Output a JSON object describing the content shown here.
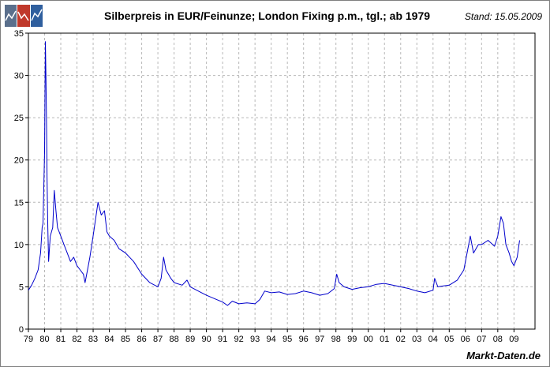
{
  "header": {
    "logo_name": "markt-daten-logo-icon",
    "logo_colors": [
      "#5a6f8c",
      "#c0392b",
      "#2f5f9e"
    ]
  },
  "chart_data": {
    "type": "line",
    "title": "Silberpreis in EUR/Feinunze; London Fixing p.m., tgl.; ab 1979",
    "stand": "Stand: 15.05.2009",
    "source": "Markt-Daten.de",
    "xlabel": "",
    "ylabel": "",
    "xlim": [
      1979.0,
      2010.3
    ],
    "ylim": [
      0,
      35
    ],
    "y_ticks": [
      0,
      5,
      10,
      15,
      20,
      25,
      30,
      35
    ],
    "x_ticks": [
      {
        "year": 1979,
        "label": "79"
      },
      {
        "year": 1980,
        "label": "80"
      },
      {
        "year": 1981,
        "label": "81"
      },
      {
        "year": 1982,
        "label": "82"
      },
      {
        "year": 1983,
        "label": "83"
      },
      {
        "year": 1984,
        "label": "84"
      },
      {
        "year": 1985,
        "label": "85"
      },
      {
        "year": 1986,
        "label": "86"
      },
      {
        "year": 1987,
        "label": "87"
      },
      {
        "year": 1988,
        "label": "88"
      },
      {
        "year": 1989,
        "label": "89"
      },
      {
        "year": 1990,
        "label": "90"
      },
      {
        "year": 1991,
        "label": "91"
      },
      {
        "year": 1992,
        "label": "92"
      },
      {
        "year": 1993,
        "label": "93"
      },
      {
        "year": 1994,
        "label": "94"
      },
      {
        "year": 1995,
        "label": "95"
      },
      {
        "year": 1996,
        "label": "96"
      },
      {
        "year": 1997,
        "label": "97"
      },
      {
        "year": 1998,
        "label": "98"
      },
      {
        "year": 1999,
        "label": "99"
      },
      {
        "year": 2000,
        "label": "00"
      },
      {
        "year": 2001,
        "label": "01"
      },
      {
        "year": 2002,
        "label": "02"
      },
      {
        "year": 2003,
        "label": "03"
      },
      {
        "year": 2004,
        "label": "04"
      },
      {
        "year": 2005,
        "label": "05"
      },
      {
        "year": 2006,
        "label": "06"
      },
      {
        "year": 2007,
        "label": "07"
      },
      {
        "year": 2008,
        "label": "08"
      },
      {
        "year": 2009,
        "label": "09"
      }
    ],
    "grid": true,
    "series": [
      {
        "name": "Silberpreis EUR/Feinunze",
        "color": "#0000cc",
        "x": [
          1979.0,
          1979.2,
          1979.4,
          1979.6,
          1979.75,
          1979.85,
          1979.9,
          1980.0,
          1980.05,
          1980.08,
          1980.12,
          1980.15,
          1980.2,
          1980.25,
          1980.35,
          1980.5,
          1980.6,
          1980.7,
          1980.8,
          1980.9,
          1981.0,
          1981.2,
          1981.4,
          1981.6,
          1981.8,
          1982.0,
          1982.2,
          1982.4,
          1982.5,
          1982.65,
          1982.8,
          1983.0,
          1983.15,
          1983.3,
          1983.5,
          1983.7,
          1983.85,
          1984.0,
          1984.3,
          1984.6,
          1985.0,
          1985.5,
          1986.0,
          1986.5,
          1987.0,
          1987.2,
          1987.35,
          1987.5,
          1987.8,
          1988.0,
          1988.5,
          1988.8,
          1989.0,
          1989.5,
          1990.0,
          1990.5,
          1991.0,
          1991.3,
          1991.6,
          1992.0,
          1992.5,
          1993.0,
          1993.3,
          1993.6,
          1994.0,
          1994.5,
          1995.0,
          1995.5,
          1996.0,
          1996.5,
          1997.0,
          1997.5,
          1997.9,
          1998.05,
          1998.2,
          1998.5,
          1999.0,
          1999.5,
          2000.0,
          2000.5,
          2001.0,
          2001.5,
          2002.0,
          2002.5,
          2003.0,
          2003.5,
          2004.0,
          2004.1,
          2004.3,
          2004.6,
          2005.0,
          2005.5,
          2005.9,
          2006.1,
          2006.3,
          2006.5,
          2006.8,
          2007.0,
          2007.4,
          2007.8,
          2008.0,
          2008.2,
          2008.35,
          2008.5,
          2008.7,
          2008.85,
          2009.0,
          2009.2,
          2009.35
        ],
        "values": [
          4.6,
          5.2,
          6.0,
          7.0,
          9.0,
          12.0,
          12.5,
          21.0,
          34.0,
          30.0,
          24.0,
          18.0,
          12.0,
          8.0,
          11.0,
          12.0,
          16.4,
          14.0,
          12.0,
          11.5,
          11.0,
          10.0,
          9.0,
          8.0,
          8.5,
          7.5,
          7.0,
          6.5,
          5.5,
          7.0,
          8.5,
          11.0,
          13.0,
          15.0,
          13.5,
          14.0,
          11.5,
          11.0,
          10.5,
          9.5,
          9.0,
          8.0,
          6.5,
          5.5,
          5.0,
          6.0,
          8.5,
          7.0,
          6.0,
          5.5,
          5.2,
          5.8,
          5.0,
          4.5,
          4.0,
          3.6,
          3.2,
          2.8,
          3.3,
          3.0,
          3.1,
          3.0,
          3.5,
          4.5,
          4.3,
          4.4,
          4.1,
          4.2,
          4.5,
          4.3,
          4.0,
          4.2,
          4.8,
          6.5,
          5.5,
          5.0,
          4.7,
          4.9,
          5.0,
          5.3,
          5.4,
          5.2,
          5.0,
          4.8,
          4.5,
          4.3,
          4.6,
          6.0,
          5.0,
          5.1,
          5.2,
          5.8,
          7.0,
          9.0,
          11.0,
          9.0,
          10.0,
          10.0,
          10.5,
          9.8,
          11.0,
          13.3,
          12.5,
          10.0,
          9.0,
          8.0,
          7.5,
          8.5,
          10.5
        ]
      }
    ]
  }
}
